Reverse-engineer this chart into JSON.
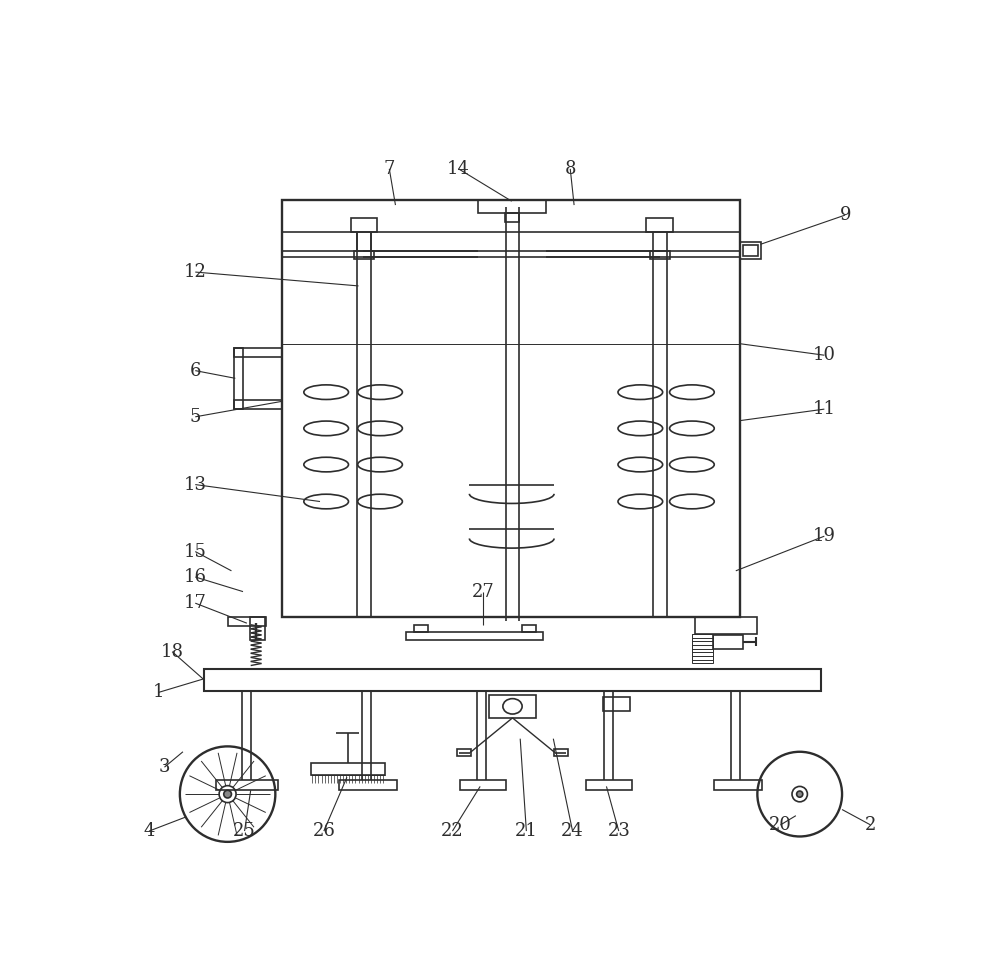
{
  "bg_color": "#ffffff",
  "line_color": "#2d2d2d",
  "lw": 1.2,
  "tlw": 0.7,
  "fig_w": 10.0,
  "fig_h": 9.71
}
